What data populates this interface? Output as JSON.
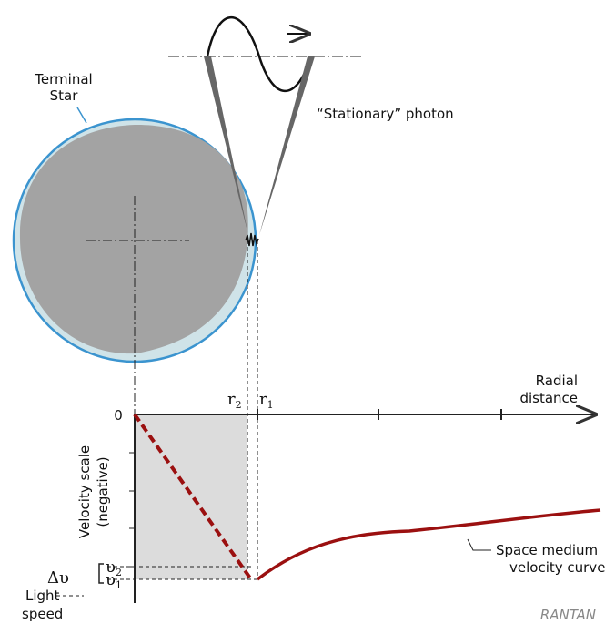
{
  "star_label": [
    "Terminal",
    "Star"
  ],
  "photon_label": "“Stationary” photon",
  "axis_label": [
    "Radial",
    "distance"
  ],
  "radius_labels": [
    {
      "base": "r",
      "sub": "2"
    },
    {
      "base": "r",
      "sub": "1"
    }
  ],
  "origin_label": "0",
  "velocity_axis_label": [
    "Velocity scale",
    "(negative)"
  ],
  "curve_label": [
    "Space medium",
    "velocity curve"
  ],
  "delta_label": "Δυ",
  "velocity_labels": [
    {
      "base": "υ",
      "sub": "2"
    },
    {
      "base": "υ",
      "sub": "1"
    }
  ],
  "light_speed_label": [
    "Light",
    "speed"
  ],
  "logo": "RANTAN"
}
